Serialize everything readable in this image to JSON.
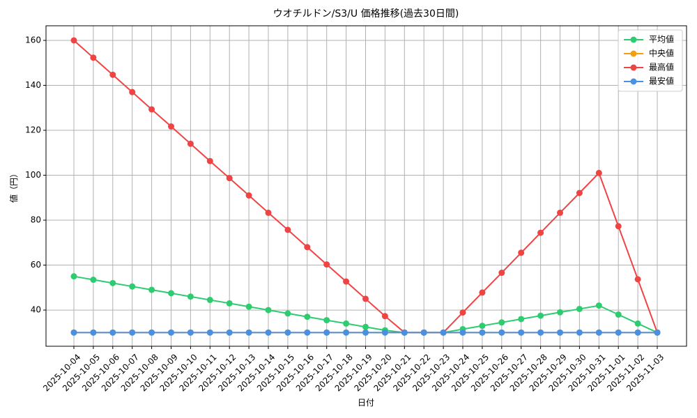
{
  "chart_data": {
    "type": "line",
    "title": "ウオチルドン/S3/U 価格推移(過去30日間)",
    "x_label": "日付",
    "y_label": "値（円）",
    "categories": [
      "2025-10-04",
      "2025-10-05",
      "2025-10-06",
      "2025-10-07",
      "2025-10-08",
      "2025-10-09",
      "2025-10-10",
      "2025-10-11",
      "2025-10-12",
      "2025-10-13",
      "2025-10-14",
      "2025-10-15",
      "2025-10-16",
      "2025-10-17",
      "2025-10-18",
      "2025-10-19",
      "2025-10-20",
      "2025-10-21",
      "2025-10-22",
      "2025-10-23",
      "2025-10-24",
      "2025-10-25",
      "2025-10-26",
      "2025-10-27",
      "2025-10-28",
      "2025-10-29",
      "2025-10-30",
      "2025-10-31",
      "2025-11-01",
      "2025-11-02",
      "2025-11-03"
    ],
    "series": [
      {
        "name": "平均値",
        "color": "#2ecc71",
        "values": [
          55,
          53.5,
          52,
          50.5,
          49,
          47.5,
          46,
          44.5,
          43,
          41.5,
          40,
          38.5,
          37,
          35.5,
          34,
          32.5,
          31,
          30,
          30,
          30,
          31.5,
          33,
          34.5,
          36,
          37.5,
          39,
          40.5,
          42,
          38,
          34,
          30
        ]
      },
      {
        "name": "中央値",
        "color": "#f59e0b",
        "values": [
          30,
          30,
          30,
          30,
          30,
          30,
          30,
          30,
          30,
          30,
          30,
          30,
          30,
          30,
          30,
          30,
          30,
          30,
          30,
          30,
          30,
          30,
          30,
          30,
          30,
          30,
          30,
          30,
          30,
          30,
          30
        ]
      },
      {
        "name": "最高値",
        "color": "#ef4444",
        "values": [
          160,
          152.3,
          144.7,
          137,
          129.3,
          121.7,
          114,
          106.3,
          98.7,
          91,
          83.3,
          75.7,
          68,
          60.3,
          52.7,
          45,
          37.3,
          30,
          30,
          30,
          38.9,
          47.8,
          56.6,
          65.5,
          74.4,
          83.3,
          92.1,
          101,
          77.3,
          53.7,
          30
        ]
      },
      {
        "name": "最安値",
        "color": "#4a90e2",
        "values": [
          30,
          30,
          30,
          30,
          30,
          30,
          30,
          30,
          30,
          30,
          30,
          30,
          30,
          30,
          30,
          30,
          30,
          30,
          30,
          30,
          30,
          30,
          30,
          30,
          30,
          30,
          30,
          30,
          30,
          30,
          30
        ]
      }
    ],
    "ylim": [
      23.9,
      166.5
    ],
    "yticks": [
      40,
      60,
      80,
      100,
      120,
      140,
      160
    ],
    "grid": true,
    "legend": "upper-right"
  }
}
